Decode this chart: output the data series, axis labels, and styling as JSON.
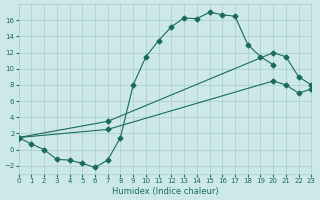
{
  "xlabel": "Humidex (Indice chaleur)",
  "background_color": "#cce8e8",
  "grid_color": "#aacccc",
  "line_color": "#1a6b5a",
  "series": [
    {
      "x": [
        0,
        1,
        2,
        3,
        4,
        5,
        6,
        7,
        8,
        9,
        10,
        11,
        12,
        13,
        14,
        15,
        16,
        17,
        18,
        19,
        20
      ],
      "y": [
        1.5,
        0.7,
        0.0,
        -1.2,
        -1.3,
        -1.7,
        -2.2,
        -1.3,
        1.5,
        8.0,
        11.5,
        13.5,
        15.2,
        16.3,
        16.2,
        17.0,
        16.7,
        16.5,
        13.0,
        11.5,
        10.5
      ]
    },
    {
      "x": [
        0,
        7,
        20,
        21,
        22,
        23
      ],
      "y": [
        1.5,
        3.5,
        12.0,
        11.5,
        9.0,
        8.0
      ]
    },
    {
      "x": [
        0,
        7,
        20,
        21,
        22,
        23
      ],
      "y": [
        1.5,
        2.5,
        8.5,
        8.0,
        7.0,
        7.5
      ]
    }
  ],
  "xlim": [
    0,
    23
  ],
  "ylim": [
    -3,
    18
  ],
  "xticks": [
    0,
    1,
    2,
    3,
    4,
    5,
    6,
    7,
    8,
    9,
    10,
    11,
    12,
    13,
    14,
    15,
    16,
    17,
    18,
    19,
    20,
    21,
    22,
    23
  ],
  "yticks": [
    -2,
    0,
    2,
    4,
    6,
    8,
    10,
    12,
    14,
    16
  ],
  "marker": "D",
  "markersize": 2.5,
  "linewidth": 0.8
}
